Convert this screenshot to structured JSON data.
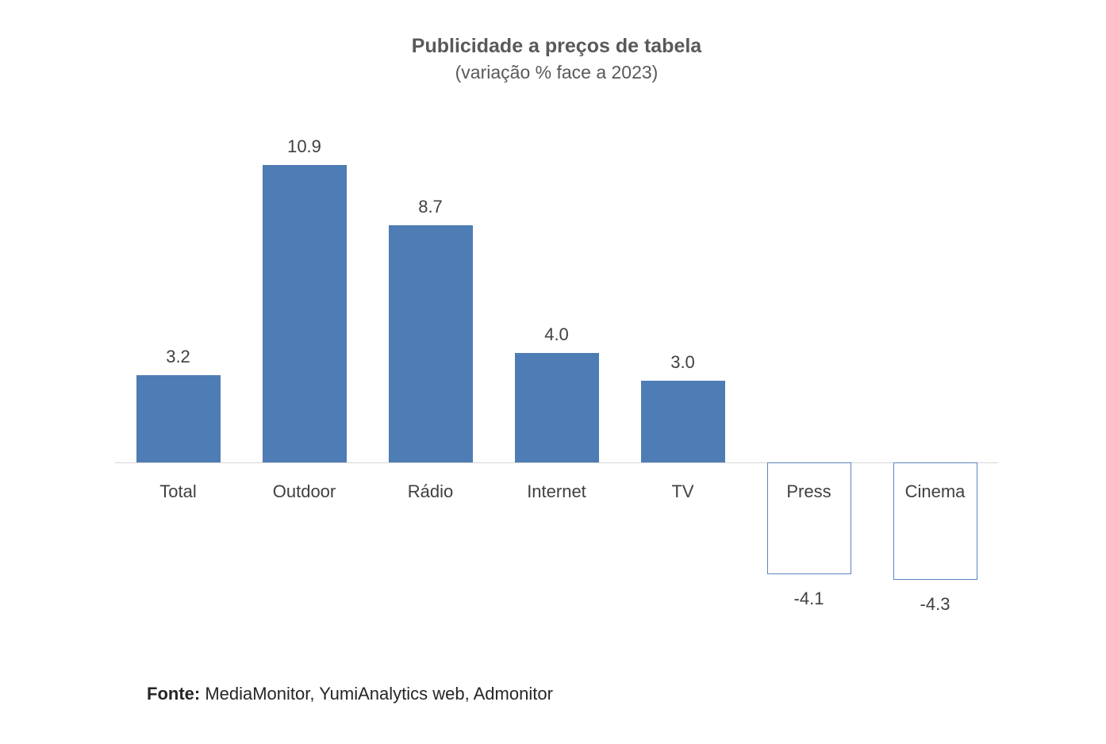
{
  "title": "Publicidade a preços de tabela",
  "subtitle": "(variação % face a 2023)",
  "footer": {
    "prefix": "Fonte:",
    "rest": " MediaMonitor, YumiAnalytics web, Admonitor"
  },
  "colors": {
    "bar_positive_fill": "#4e7cb5",
    "bar_negative_outline": "#5a86bd",
    "axis_line": "#d6d6d6",
    "title_text": "#595959",
    "label_text": "#404040"
  },
  "chart_data": {
    "type": "bar",
    "title": "Publicidade a preços de tabela",
    "subtitle": "(variação % face a 2023)",
    "categories": [
      "Total",
      "Outdoor",
      "Rádio",
      "Internet",
      "TV",
      "Press",
      "Cinema"
    ],
    "values": [
      3.2,
      10.9,
      8.7,
      4.0,
      3.0,
      -4.1,
      -4.3
    ],
    "value_label_format": "one-decimal",
    "xlabel": "",
    "ylabel": "",
    "ylim": [
      -5,
      12
    ],
    "grid": false,
    "legend": "none",
    "source": "Fonte: MediaMonitor, YumiAnalytics web, Admonitor",
    "negative_bar_style": "white fill with blue outline, label below bar"
  }
}
